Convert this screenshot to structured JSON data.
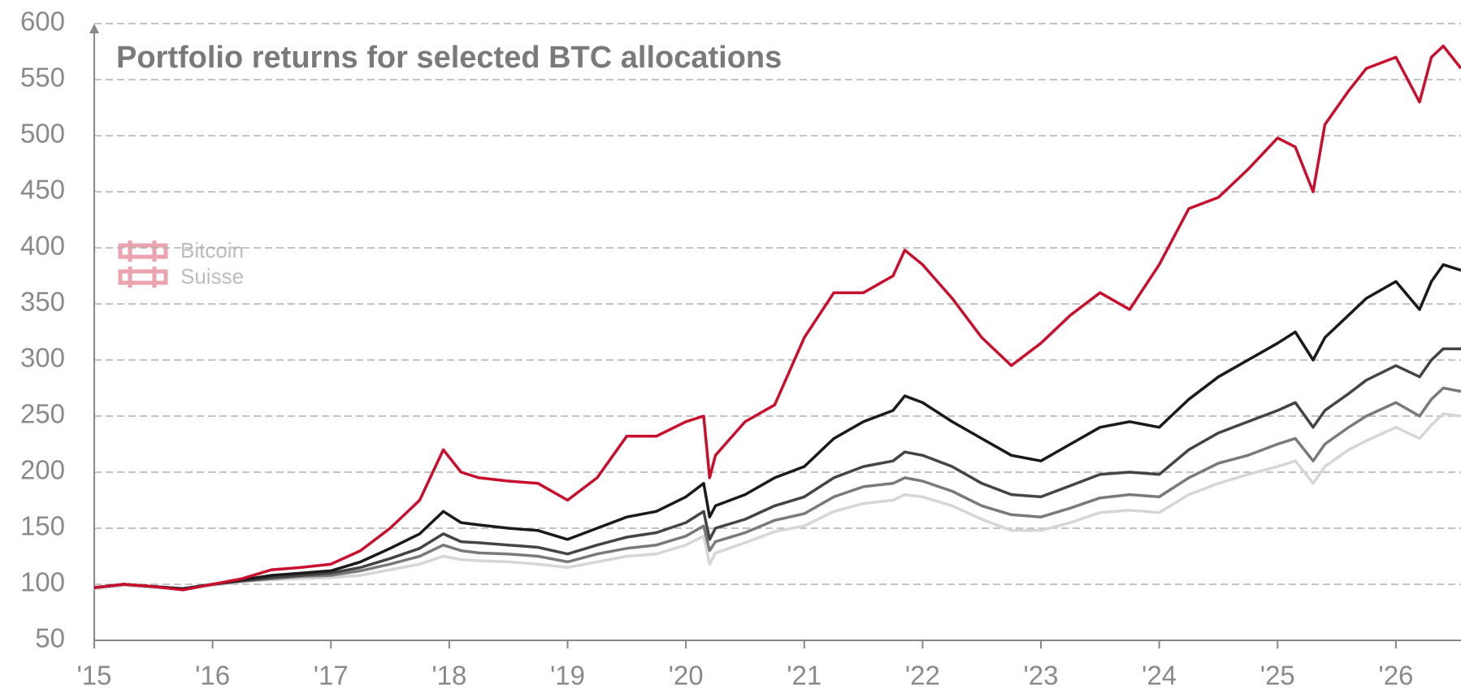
{
  "chart_data": {
    "type": "line",
    "title": "Portfolio returns for selected BTC allocations",
    "logo_text": [
      "Bitcoin",
      "Suisse"
    ],
    "x": [
      2015.0,
      2015.25,
      2015.5,
      2015.75,
      2016.0,
      2016.25,
      2016.5,
      2016.75,
      2017.0,
      2017.25,
      2017.5,
      2017.75,
      2017.95,
      2018.1,
      2018.25,
      2018.5,
      2018.75,
      2019.0,
      2019.25,
      2019.5,
      2019.75,
      2020.0,
      2020.15,
      2020.2,
      2020.25,
      2020.5,
      2020.75,
      2021.0,
      2021.25,
      2021.5,
      2021.75,
      2021.85,
      2022.0,
      2022.25,
      2022.5,
      2022.75,
      2023.0,
      2023.25,
      2023.5,
      2023.75,
      2024.0,
      2024.25,
      2024.5,
      2024.75,
      2025.0,
      2025.15,
      2025.3,
      2025.4,
      2025.6,
      2025.75,
      2026.0,
      2026.2,
      2026.3,
      2026.4,
      2026.55
    ],
    "series": [
      {
        "color": "#d6d6d6",
        "values": [
          96,
          99,
          97,
          96,
          99,
          102,
          104,
          105,
          106,
          108,
          113,
          118,
          125,
          122,
          121,
          120,
          118,
          115,
          120,
          125,
          127,
          135,
          143,
          118,
          128,
          137,
          147,
          152,
          165,
          172,
          175,
          180,
          178,
          170,
          158,
          148,
          148,
          155,
          164,
          166,
          164,
          180,
          190,
          198,
          205,
          210,
          190,
          205,
          220,
          228,
          240,
          230,
          242,
          252,
          250
        ]
      },
      {
        "color": "#7a7a7a",
        "values": [
          97,
          100,
          98,
          96,
          100,
          103,
          105,
          107,
          108,
          112,
          118,
          125,
          135,
          130,
          128,
          127,
          125,
          120,
          127,
          132,
          135,
          143,
          152,
          130,
          138,
          146,
          157,
          163,
          178,
          187,
          190,
          195,
          192,
          183,
          170,
          162,
          160,
          168,
          177,
          180,
          178,
          195,
          208,
          215,
          225,
          230,
          210,
          225,
          240,
          250,
          262,
          250,
          265,
          275,
          272
        ]
      },
      {
        "color": "#444444",
        "values": [
          97,
          100,
          98,
          96,
          100,
          103,
          106,
          108,
          110,
          115,
          123,
          132,
          145,
          138,
          137,
          135,
          133,
          127,
          135,
          142,
          146,
          155,
          165,
          140,
          150,
          158,
          170,
          178,
          195,
          205,
          210,
          218,
          215,
          205,
          190,
          180,
          178,
          188,
          198,
          200,
          198,
          220,
          235,
          245,
          255,
          262,
          240,
          255,
          270,
          282,
          295,
          285,
          300,
          310,
          310
        ]
      },
      {
        "color": "#1a1a1a",
        "values": [
          97,
          100,
          98,
          96,
          100,
          104,
          108,
          110,
          112,
          120,
          132,
          145,
          165,
          155,
          153,
          150,
          148,
          140,
          150,
          160,
          165,
          178,
          190,
          160,
          170,
          180,
          195,
          205,
          230,
          245,
          255,
          268,
          262,
          245,
          230,
          215,
          210,
          225,
          240,
          245,
          240,
          265,
          285,
          300,
          315,
          325,
          300,
          320,
          340,
          355,
          370,
          345,
          370,
          385,
          380
        ]
      },
      {
        "color": "#c8102e",
        "values": [
          97,
          100,
          98,
          95,
          100,
          105,
          113,
          115,
          118,
          130,
          150,
          175,
          220,
          200,
          195,
          192,
          190,
          175,
          195,
          232,
          232,
          245,
          250,
          195,
          215,
          245,
          260,
          320,
          360,
          360,
          375,
          398,
          385,
          355,
          320,
          295,
          315,
          340,
          360,
          345,
          385,
          435,
          445,
          470,
          498,
          490,
          450,
          510,
          540,
          560,
          570,
          530,
          570,
          580,
          560
        ]
      }
    ],
    "xlim": [
      2015,
      2026.55
    ],
    "xticks": [
      {
        "value": 2015,
        "label": "'15"
      },
      {
        "value": 2016,
        "label": "'16"
      },
      {
        "value": 2017,
        "label": "'17"
      },
      {
        "value": 2018,
        "label": "'18"
      },
      {
        "value": 2019,
        "label": "'19"
      },
      {
        "value": 2020,
        "label": "'20"
      },
      {
        "value": 2021,
        "label": "'21"
      },
      {
        "value": 2022,
        "label": "'22"
      },
      {
        "value": 2023,
        "label": "'23"
      },
      {
        "value": 2024,
        "label": "'24"
      },
      {
        "value": 2025,
        "label": "'25"
      },
      {
        "value": 2026,
        "label": "'26"
      }
    ],
    "ylim": [
      50,
      600
    ],
    "yticks": [
      50,
      100,
      150,
      200,
      250,
      300,
      350,
      400,
      450,
      500,
      550,
      600
    ],
    "grid": true
  }
}
